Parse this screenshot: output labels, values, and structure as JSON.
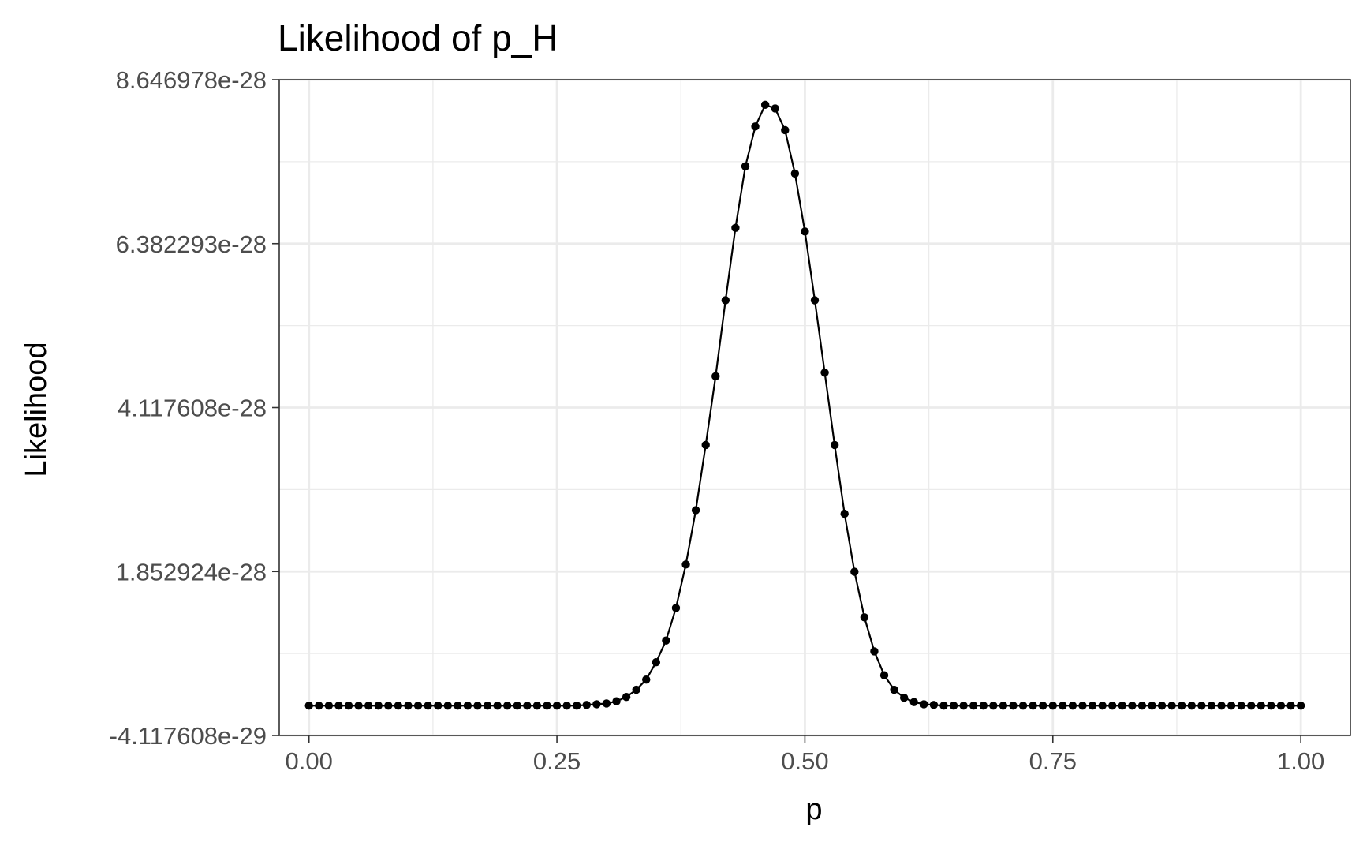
{
  "chart_data": {
    "type": "line",
    "title": "Likelihood of p_H",
    "xlabel": "p",
    "ylabel": "Likelihood",
    "xlim": [
      -0.03,
      1.05
    ],
    "ylim": [
      -4.117608e-29,
      8.646978e-28
    ],
    "x_ticks": [
      0,
      0.25,
      0.5,
      0.75,
      1
    ],
    "x_tick_labels": [
      "0.00",
      "0.25",
      "0.50",
      "0.75",
      "1.00"
    ],
    "y_ticks": [
      -4.117608e-29,
      1.852924e-28,
      4.117608e-28,
      6.382293e-28,
      8.646978e-28
    ],
    "y_tick_labels": [
      "-4.117608e-29",
      "1.852924e-28",
      "4.117608e-28",
      "6.382293e-28",
      "8.646978e-28"
    ],
    "grid": true,
    "legend": "none",
    "colors": {
      "line": "#000000",
      "points": "#000000",
      "grid": "#ebebeb",
      "panel_border": "#333333",
      "tick_label": "#4d4d4d"
    },
    "series": [
      {
        "x": [
          0,
          0.01,
          0.02,
          0.03,
          0.04,
          0.05,
          0.06,
          0.07,
          0.08,
          0.09,
          0.1,
          0.11,
          0.12,
          0.13,
          0.14,
          0.15,
          0.16,
          0.17,
          0.18,
          0.19,
          0.2,
          0.21,
          0.22,
          0.23,
          0.24,
          0.25,
          0.26,
          0.27,
          0.28,
          0.29,
          0.3,
          0.31,
          0.32,
          0.33,
          0.34,
          0.35,
          0.36,
          0.37,
          0.38,
          0.39,
          0.4,
          0.41,
          0.42,
          0.43,
          0.44,
          0.45,
          0.46,
          0.47,
          0.48,
          0.49,
          0.5,
          0.51,
          0.52,
          0.53,
          0.54,
          0.55,
          0.56,
          0.57,
          0.58,
          0.59,
          0.6,
          0.61,
          0.62,
          0.63,
          0.64,
          0.65,
          0.66,
          0.67,
          0.68,
          0.69,
          0.7,
          0.71,
          0.72,
          0.73,
          0.74,
          0.75,
          0.76,
          0.77,
          0.78,
          0.79,
          0.8,
          0.81,
          0.82,
          0.83,
          0.84,
          0.85,
          0.86,
          0.87,
          0.88,
          0.89,
          0.9,
          0.91,
          0.92,
          0.93,
          0.94,
          0.95,
          0.96,
          0.97,
          0.98,
          0.99,
          1
        ],
        "y": [
          0,
          0,
          0,
          0,
          0,
          0,
          0,
          0,
          0,
          0,
          0,
          0,
          0,
          0,
          0,
          0,
          0,
          0,
          0,
          0,
          0,
          0,
          0,
          0,
          0,
          0,
          0,
          0,
          1e-30,
          2e-30,
          3e-30,
          6e-30,
          1.2e-29,
          2.2e-29,
          3.6e-29,
          6e-29,
          9e-29,
          1.35e-28,
          1.95e-28,
          2.7e-28,
          3.6e-28,
          4.55e-28,
          5.6e-28,
          6.6e-28,
          7.45e-28,
          8e-28,
          8.3e-28,
          8.25e-28,
          7.95e-28,
          7.35e-28,
          6.55e-28,
          5.6e-28,
          4.6e-28,
          3.6e-28,
          2.65e-28,
          1.85e-28,
          1.22e-28,
          7.5e-29,
          4.2e-29,
          2.2e-29,
          1.1e-29,
          5e-30,
          2e-30,
          1e-30,
          0,
          0,
          0,
          0,
          0,
          0,
          0,
          0,
          0,
          0,
          0,
          0,
          0,
          0,
          0,
          0,
          0,
          0,
          0,
          0,
          0,
          0,
          0,
          0,
          0,
          0,
          0,
          0,
          0,
          0,
          0,
          0,
          0,
          0,
          0,
          0,
          0
        ]
      }
    ]
  }
}
